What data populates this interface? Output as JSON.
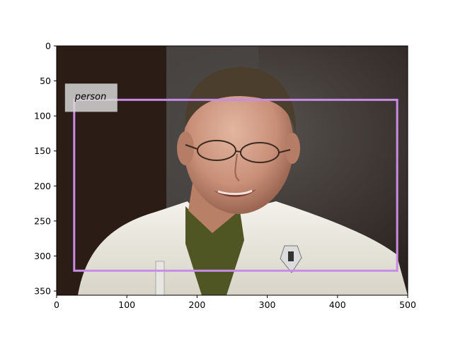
{
  "image": {
    "width": 500,
    "height": 356,
    "description_tag": "photo-portrait"
  },
  "axes": {
    "x_ticks": [
      "0",
      "100",
      "200",
      "300",
      "400",
      "500"
    ],
    "y_ticks": [
      "0",
      "50",
      "100",
      "150",
      "200",
      "250",
      "300",
      "350"
    ]
  },
  "detections": [
    {
      "label": "person",
      "box_color": "#c88ce6",
      "x_min": 25,
      "y_min": 77,
      "x_max": 485,
      "y_max": 321
    }
  ]
}
